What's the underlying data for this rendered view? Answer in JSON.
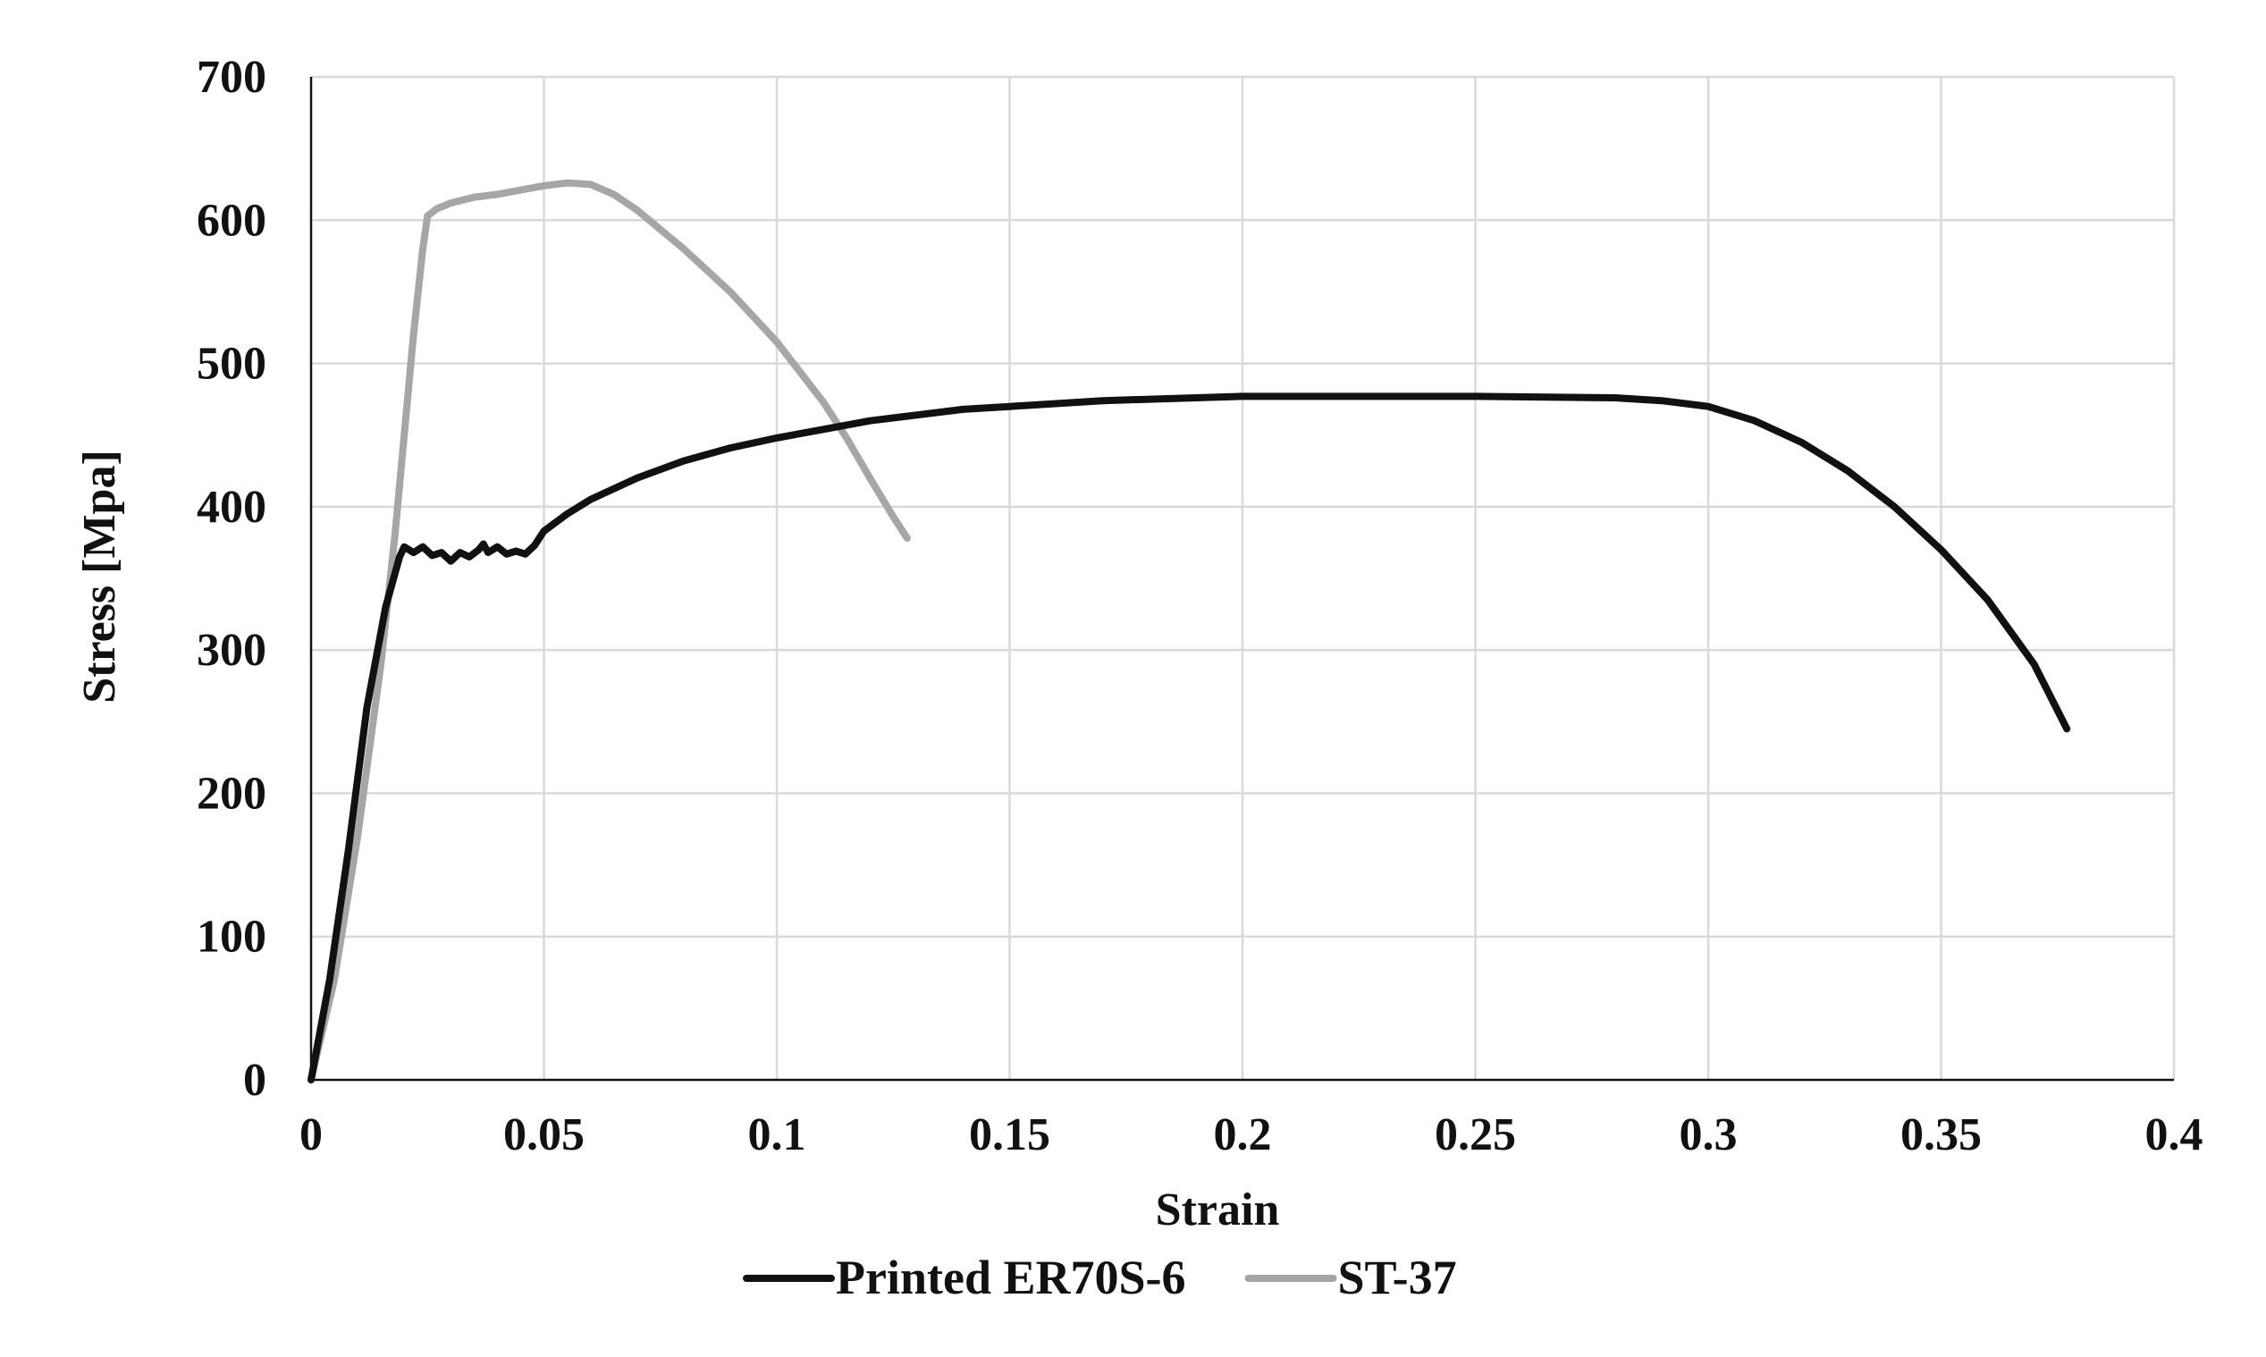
{
  "chart_data": {
    "type": "line",
    "title": "",
    "xlabel": "Strain",
    "ylabel": "Stress [Mpa]",
    "xlim": [
      0,
      0.4
    ],
    "ylim": [
      0,
      700
    ],
    "x_ticks": [
      "0",
      "0.05",
      "0.1",
      "0.15",
      "0.2",
      "0.25",
      "0.3",
      "0.35",
      "0.4"
    ],
    "y_ticks": [
      "0",
      "100",
      "200",
      "300",
      "400",
      "500",
      "600",
      "700"
    ],
    "grid": true,
    "legend_position": "bottom",
    "series": [
      {
        "name": "Printed ER70S-6",
        "color": "#111111",
        "x": [
          0,
          0.004,
          0.008,
          0.012,
          0.016,
          0.019,
          0.02,
          0.022,
          0.024,
          0.026,
          0.028,
          0.03,
          0.032,
          0.034,
          0.036,
          0.037,
          0.038,
          0.04,
          0.042,
          0.044,
          0.046,
          0.048,
          0.05,
          0.055,
          0.06,
          0.07,
          0.08,
          0.09,
          0.1,
          0.11,
          0.12,
          0.13,
          0.14,
          0.15,
          0.17,
          0.2,
          0.22,
          0.25,
          0.28,
          0.29,
          0.3,
          0.31,
          0.32,
          0.33,
          0.34,
          0.35,
          0.36,
          0.37,
          0.377
        ],
        "y": [
          0,
          70,
          160,
          260,
          330,
          365,
          372,
          368,
          372,
          366,
          368,
          362,
          368,
          365,
          370,
          374,
          368,
          372,
          367,
          369,
          367,
          373,
          383,
          395,
          405,
          420,
          432,
          441,
          448,
          454,
          460,
          464,
          468,
          470,
          474,
          477,
          477,
          477,
          476,
          474,
          470,
          460,
          445,
          425,
          400,
          370,
          335,
          290,
          245
        ]
      },
      {
        "name": "ST-37",
        "color": "#a6a6a6",
        "x": [
          0,
          0.005,
          0.01,
          0.015,
          0.018,
          0.02,
          0.022,
          0.024,
          0.025,
          0.027,
          0.03,
          0.035,
          0.04,
          0.045,
          0.05,
          0.055,
          0.06,
          0.065,
          0.07,
          0.08,
          0.09,
          0.1,
          0.11,
          0.115,
          0.12,
          0.125,
          0.128
        ],
        "y": [
          0,
          70,
          170,
          290,
          380,
          450,
          520,
          580,
          603,
          608,
          612,
          616,
          618,
          621,
          624,
          626,
          625,
          618,
          607,
          580,
          550,
          515,
          473,
          448,
          420,
          393,
          378
        ]
      }
    ]
  }
}
